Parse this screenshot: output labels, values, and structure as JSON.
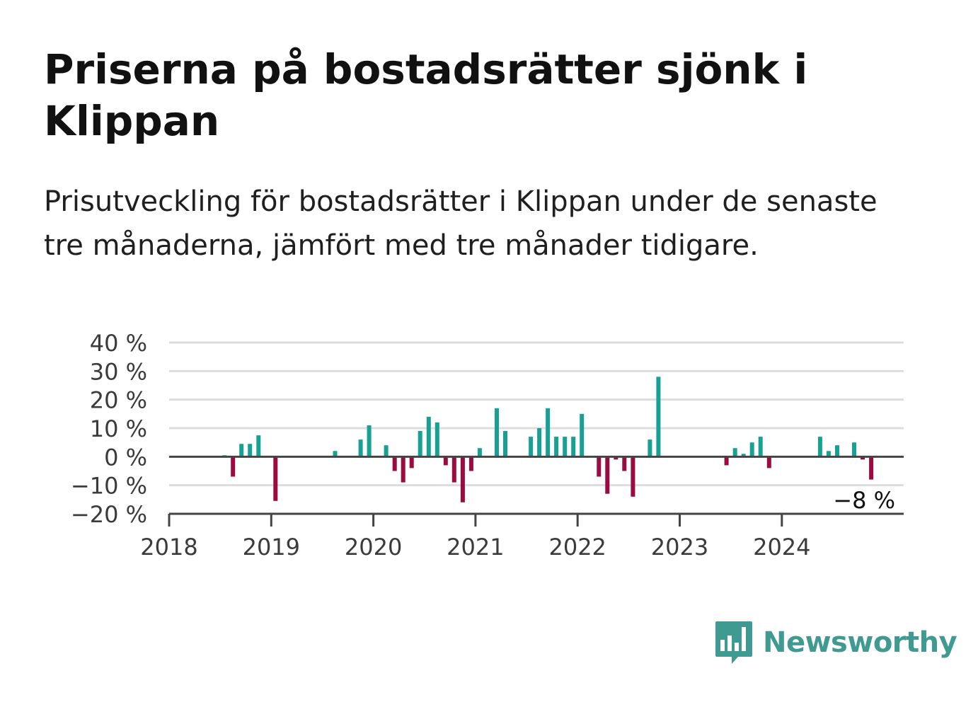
{
  "title": "Priserna på bostadsrätter sjönk i Klippan",
  "subtitle": "Prisutveckling för bostadsrätter i Klippan under de senaste tre månaderna, jämfört med tre månader tidigare.",
  "brand": {
    "name": "Newsworthy",
    "color": "#3f9a91",
    "icon": "bar-chart-speech-bubble-icon"
  },
  "colors": {
    "positive": "#17a195",
    "negative": "#9b0a40",
    "grid": "#dddddd",
    "baseline": "#444444"
  },
  "chart_data": {
    "type": "bar",
    "title": "",
    "xlabel": "",
    "ylabel": "",
    "ylim": [
      -20,
      40
    ],
    "xlim": [
      2018.0,
      2025.2
    ],
    "yticks": [
      40,
      30,
      20,
      10,
      0,
      -10,
      -20
    ],
    "ytick_labels": [
      "40 %",
      "30 %",
      "20 %",
      "10 %",
      "0 %",
      "−10 %",
      "−20 %"
    ],
    "xticks": [
      "2018",
      "2019",
      "2020",
      "2021",
      "2022",
      "2023",
      "2024"
    ],
    "grid": true,
    "legend": "none",
    "annotation": {
      "label": "−8 %",
      "target": "last-bar"
    },
    "bars": [
      {
        "x": "2018-07",
        "value": 0.5
      },
      {
        "x": "2018-08",
        "value": -7
      },
      {
        "x": "2018-09",
        "value": 4.5
      },
      {
        "x": "2018-10",
        "value": 4.5
      },
      {
        "x": "2018-11",
        "value": 7.5
      },
      {
        "x": "2019-01",
        "value": -15.5
      },
      {
        "x": "2019-08",
        "value": 2
      },
      {
        "x": "2019-11",
        "value": 6
      },
      {
        "x": "2019-12",
        "value": 11
      },
      {
        "x": "2020-02",
        "value": 4
      },
      {
        "x": "2020-03",
        "value": -5
      },
      {
        "x": "2020-04",
        "value": -9
      },
      {
        "x": "2020-05",
        "value": -4
      },
      {
        "x": "2020-06",
        "value": 9
      },
      {
        "x": "2020-07",
        "value": 14
      },
      {
        "x": "2020-08",
        "value": 12
      },
      {
        "x": "2020-09",
        "value": -3
      },
      {
        "x": "2020-10",
        "value": -9
      },
      {
        "x": "2020-11",
        "value": -16
      },
      {
        "x": "2020-12",
        "value": -5
      },
      {
        "x": "2021-01",
        "value": 3
      },
      {
        "x": "2021-03",
        "value": 17
      },
      {
        "x": "2021-04",
        "value": 9
      },
      {
        "x": "2021-07",
        "value": 7
      },
      {
        "x": "2021-08",
        "value": 10
      },
      {
        "x": "2021-09",
        "value": 17
      },
      {
        "x": "2021-10",
        "value": 7
      },
      {
        "x": "2021-11",
        "value": 7
      },
      {
        "x": "2021-12",
        "value": 7
      },
      {
        "x": "2022-01",
        "value": 15
      },
      {
        "x": "2022-03",
        "value": -7
      },
      {
        "x": "2022-04",
        "value": -13
      },
      {
        "x": "2022-05",
        "value": -1
      },
      {
        "x": "2022-06",
        "value": -5
      },
      {
        "x": "2022-07",
        "value": -14
      },
      {
        "x": "2022-09",
        "value": 6
      },
      {
        "x": "2022-10",
        "value": 28
      },
      {
        "x": "2023-06",
        "value": -3
      },
      {
        "x": "2023-07",
        "value": 3
      },
      {
        "x": "2023-08",
        "value": 1
      },
      {
        "x": "2023-09",
        "value": 5
      },
      {
        "x": "2023-10",
        "value": 7
      },
      {
        "x": "2023-11",
        "value": -4
      },
      {
        "x": "2024-05",
        "value": 7
      },
      {
        "x": "2024-06",
        "value": 2
      },
      {
        "x": "2024-07",
        "value": 4
      },
      {
        "x": "2024-09",
        "value": 5
      },
      {
        "x": "2024-10",
        "value": -1
      },
      {
        "x": "2024-11",
        "value": -8
      }
    ]
  }
}
